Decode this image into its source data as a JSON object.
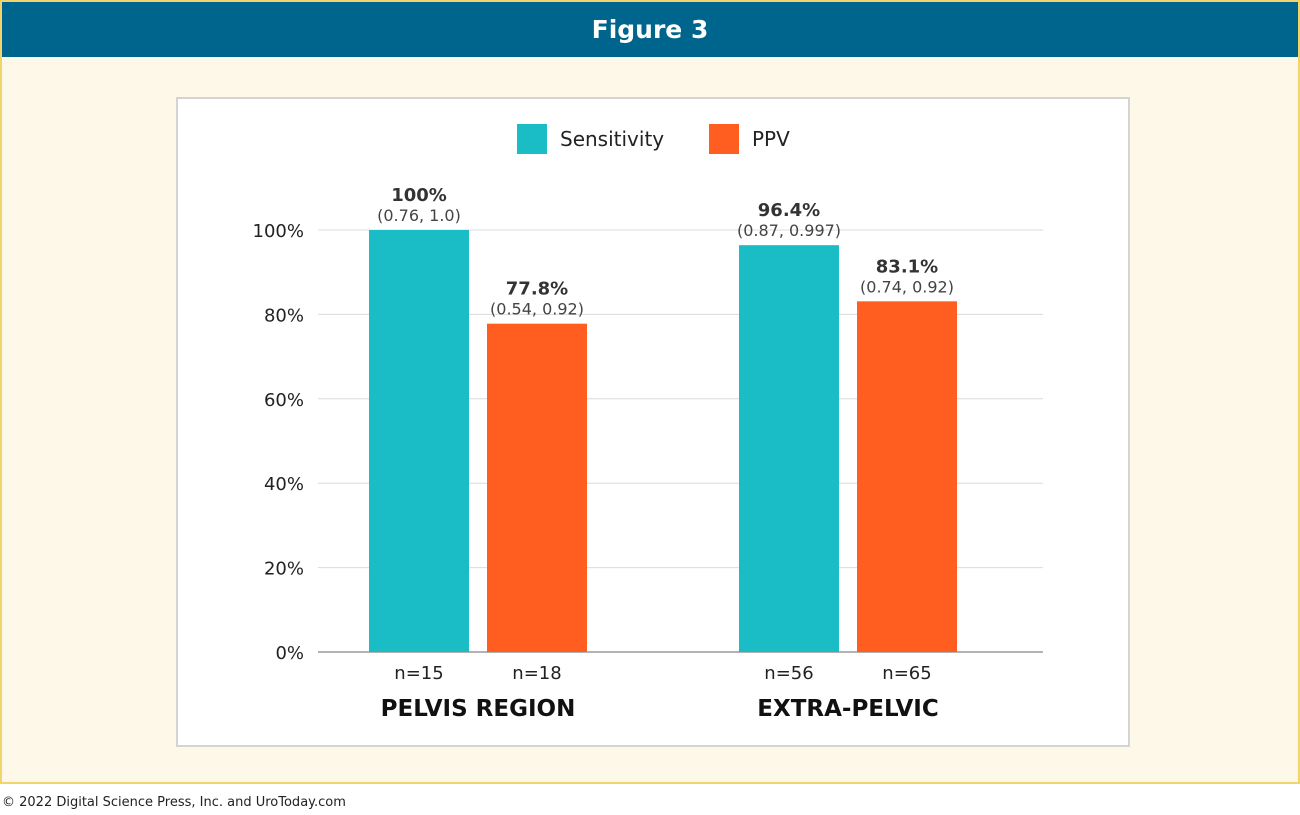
{
  "figure_title": "Figure 3",
  "footer": "© 2022 Digital Science Press, Inc. and UroToday.com",
  "chart_data": {
    "type": "bar",
    "title": "",
    "xlabel": "",
    "ylabel": "",
    "ylim": [
      0,
      100
    ],
    "yticks": [
      0,
      20,
      40,
      60,
      80,
      100
    ],
    "ytick_labels": [
      "0%",
      "20%",
      "40%",
      "60%",
      "80%",
      "100%"
    ],
    "grid": true,
    "legend_position": "top-center",
    "categories": [
      "PELVIS REGION",
      "EXTRA-PELVIC"
    ],
    "series": [
      {
        "name": "Sensitivity",
        "color": "#1abcc6",
        "values": [
          100,
          96.4
        ],
        "value_labels": [
          "100%",
          "96.4%"
        ],
        "ci_labels": [
          "(0.76, 1.0)",
          "(0.87, 0.997)"
        ],
        "n_labels": [
          "n=15",
          "n=56"
        ]
      },
      {
        "name": "PPV",
        "color": "#ff5e20",
        "values": [
          77.8,
          83.1
        ],
        "value_labels": [
          "77.8%",
          "83.1%"
        ],
        "ci_labels": [
          "(0.54, 0.92)",
          "(0.74, 0.92)"
        ],
        "n_labels": [
          "n=18",
          "n=65"
        ]
      }
    ]
  }
}
